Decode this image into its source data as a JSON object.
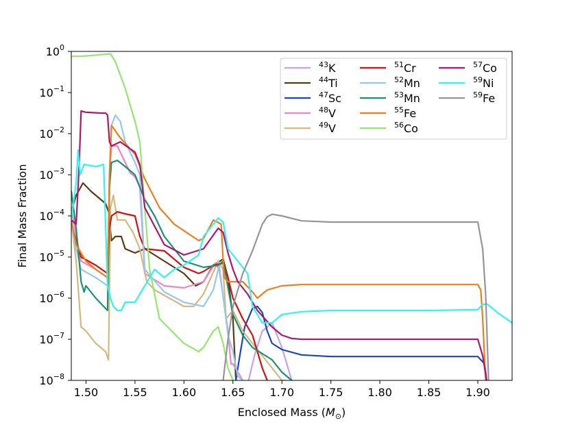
{
  "chart_data": {
    "type": "line",
    "title": "",
    "xlabel": "Enclosed Mass (",
    "xlabel_math": "M",
    "xlabel_sub": "⊙",
    "xlabel_end": ")",
    "ylabel": "Final Mass Fraction",
    "xlim": [
      1.485,
      1.935
    ],
    "ylim_log10": [
      -8,
      0
    ],
    "yscale": "log",
    "xticks": [
      1.5,
      1.55,
      1.6,
      1.65,
      1.7,
      1.75,
      1.8,
      1.85,
      1.9
    ],
    "xtick_labels": [
      "1.50",
      "1.55",
      "1.60",
      "1.65",
      "1.70",
      "1.75",
      "1.80",
      "1.85",
      "1.90"
    ],
    "ytick_exponents": [
      0,
      -1,
      -2,
      -3,
      -4,
      -5,
      -6,
      -7,
      -8
    ],
    "ytick_base": "10",
    "ytick_exp_labels": [
      "0",
      "−1",
      "−2",
      "−3",
      "−4",
      "−5",
      "−6",
      "−7",
      "−8"
    ],
    "legend_location": "top-right",
    "series": [
      {
        "name": "43K",
        "mass": "43",
        "element": "K",
        "color": "#c8a2e8",
        "x": [
          1.666,
          1.672,
          1.68,
          1.69,
          1.7,
          1.705,
          1.71
        ],
        "log10y": [
          -8,
          -7.4,
          -6.8,
          -6.6,
          -7.2,
          -7.6,
          -8
        ]
      },
      {
        "name": "44Ti",
        "mass": "44",
        "element": "Ti",
        "color": "#5a3a10",
        "x": [
          1.485,
          1.49,
          1.497,
          1.505,
          1.52,
          1.523,
          1.526,
          1.53,
          1.536,
          1.54,
          1.55,
          1.56,
          1.58,
          1.6,
          1.612,
          1.62,
          1.63,
          1.64,
          1.645,
          1.65,
          1.653
        ],
        "log10y": [
          -3.9,
          -3.5,
          -3.2,
          -3.4,
          -3.7,
          -3.9,
          -4.6,
          -4.5,
          -4.5,
          -4.8,
          -4.9,
          -4.8,
          -5.1,
          -5.4,
          -5.7,
          -5.6,
          -5.2,
          -5.05,
          -5.5,
          -6.5,
          -8
        ]
      },
      {
        "name": "47Sc",
        "mass": "47",
        "element": "Sc",
        "color": "#1544c8",
        "x": [
          1.653,
          1.657,
          1.662,
          1.67,
          1.675,
          1.68,
          1.685,
          1.69,
          1.7,
          1.72,
          1.75,
          1.8,
          1.85,
          1.9,
          1.907,
          1.909
        ],
        "log10y": [
          -8,
          -7.4,
          -6.7,
          -6.25,
          -6.2,
          -6.35,
          -6.8,
          -7.1,
          -7.25,
          -7.38,
          -7.42,
          -7.42,
          -7.42,
          -7.42,
          -7.6,
          -8
        ]
      },
      {
        "name": "48V",
        "mass": "48",
        "element": "V",
        "color": "#f285c0",
        "x": [
          1.485,
          1.49,
          1.495,
          1.51,
          1.522,
          1.524,
          1.526,
          1.532,
          1.54,
          1.545,
          1.55,
          1.555,
          1.56,
          1.58,
          1.6,
          1.62,
          1.632,
          1.636,
          1.645,
          1.648,
          1.65,
          1.66
        ],
        "log10y": [
          -3.8,
          -4.5,
          -5.1,
          -5.3,
          -5.5,
          -3.0,
          -2.3,
          -2.3,
          -2.7,
          -2.95,
          -3.05,
          -3.3,
          -5.4,
          -5.7,
          -5.75,
          -5.6,
          -5.15,
          -5.3,
          -6.8,
          -7.6,
          -7.6,
          -8
        ]
      },
      {
        "name": "49V",
        "mass": "49",
        "element": "V",
        "color": "#d6b77a",
        "x": [
          1.485,
          1.49,
          1.495,
          1.5,
          1.51,
          1.52,
          1.523,
          1.525,
          1.528,
          1.532,
          1.54,
          1.548,
          1.555,
          1.562,
          1.57,
          1.6,
          1.61,
          1.62,
          1.635,
          1.64,
          1.643,
          1.65,
          1.66,
          1.67,
          1.68,
          1.69,
          1.7,
          1.703
        ],
        "log10y": [
          -4.1,
          -5.1,
          -6.7,
          -6.8,
          -7.1,
          -7.3,
          -7.5,
          -3.8,
          -3.5,
          -4.1,
          -4.1,
          -4.4,
          -4.8,
          -5.6,
          -5.8,
          -6.2,
          -6.2,
          -5.9,
          -5.1,
          -5.3,
          -6.5,
          -6.3,
          -6.8,
          -7.1,
          -7.4,
          -7.7,
          -8,
          -8
        ]
      },
      {
        "name": "51Cr",
        "mass": "51",
        "element": "Cr",
        "color": "#d60e0e",
        "x": [
          1.485,
          1.49,
          1.495,
          1.51,
          1.522,
          1.524,
          1.526,
          1.532,
          1.54,
          1.55,
          1.555,
          1.56,
          1.58,
          1.6,
          1.615,
          1.62,
          1.63,
          1.64,
          1.645,
          1.65,
          1.66,
          1.67,
          1.675,
          1.68,
          1.685
        ],
        "log10y": [
          -4.2,
          -4.6,
          -5.0,
          -5.2,
          -5.4,
          -4.3,
          -4.0,
          -3.9,
          -3.95,
          -4.0,
          -4.5,
          -4.8,
          -4.85,
          -5.25,
          -5.4,
          -5.35,
          -5.2,
          -5.15,
          -5.5,
          -6.0,
          -6.5,
          -6.9,
          -7.3,
          -7.7,
          -8
        ]
      },
      {
        "name": "52Mn",
        "mass": "52",
        "element": "Mn",
        "color": "#92c8f2",
        "x": [
          1.485,
          1.49,
          1.495,
          1.51,
          1.522,
          1.524,
          1.526,
          1.53,
          1.535,
          1.54,
          1.55,
          1.555,
          1.56,
          1.58,
          1.6,
          1.62,
          1.63,
          1.636,
          1.645,
          1.65,
          1.655,
          1.66
        ],
        "log10y": [
          -4.2,
          -4.8,
          -5.3,
          -5.5,
          -5.7,
          -3.0,
          -1.8,
          -1.55,
          -1.7,
          -2.2,
          -2.7,
          -3.0,
          -5.3,
          -5.85,
          -6.1,
          -6.2,
          -5.8,
          -5.2,
          -6.9,
          -7.3,
          -7.9,
          -8
        ]
      },
      {
        "name": "53Mn",
        "mass": "53",
        "element": "Mn",
        "color": "#189078",
        "x": [
          1.485,
          1.49,
          1.495,
          1.498,
          1.5,
          1.51,
          1.522,
          1.524,
          1.526,
          1.532,
          1.54,
          1.55,
          1.555,
          1.56,
          1.57,
          1.58,
          1.6,
          1.62,
          1.635,
          1.64,
          1.65,
          1.66,
          1.67,
          1.68,
          1.69,
          1.7,
          1.71
        ],
        "log10y": [
          -3.4,
          -4.3,
          -5.6,
          -5.85,
          -5.7,
          -6.0,
          -6.3,
          -3.3,
          -2.7,
          -2.65,
          -2.8,
          -3.0,
          -3.3,
          -3.6,
          -4.0,
          -4.5,
          -5.1,
          -5.25,
          -5.2,
          -5.1,
          -6.4,
          -6.9,
          -7.2,
          -7.35,
          -7.5,
          -7.8,
          -8
        ]
      },
      {
        "name": "55Fe",
        "mass": "55",
        "element": "Fe",
        "color": "#f07c1a",
        "x": [
          1.485,
          1.49,
          1.5,
          1.51,
          1.522,
          1.524,
          1.526,
          1.535,
          1.55,
          1.56,
          1.575,
          1.59,
          1.615,
          1.62,
          1.63,
          1.638,
          1.641,
          1.645,
          1.66,
          1.67,
          1.675,
          1.68,
          1.685,
          1.7,
          1.72,
          1.75,
          1.8,
          1.85,
          1.9,
          1.903,
          1.905,
          1.908
        ],
        "log10y": [
          -4.1,
          -4.7,
          -5.1,
          -5.3,
          -5.5,
          -3.0,
          -1.8,
          -2.1,
          -2.5,
          -3.1,
          -3.8,
          -4.2,
          -4.6,
          -4.55,
          -4.1,
          -4.2,
          -5.5,
          -5.6,
          -5.6,
          -5.85,
          -6.0,
          -5.9,
          -5.8,
          -5.7,
          -5.67,
          -5.67,
          -5.67,
          -5.67,
          -5.67,
          -5.8,
          -6.5,
          -8
        ]
      },
      {
        "name": "56Co",
        "mass": "56",
        "element": "Co",
        "color": "#92e86c",
        "x": [
          1.485,
          1.495,
          1.505,
          1.52,
          1.525,
          1.53,
          1.54,
          1.55,
          1.555,
          1.56,
          1.565,
          1.575,
          1.6,
          1.615,
          1.62,
          1.63,
          1.635,
          1.64,
          1.645,
          1.65
        ],
        "log10y": [
          -0.12,
          -0.12,
          -0.1,
          -0.07,
          -0.06,
          -0.25,
          -0.9,
          -1.7,
          -2.2,
          -3.8,
          -5.3,
          -6.5,
          -7.1,
          -7.3,
          -7.2,
          -6.8,
          -6.7,
          -7.1,
          -7.7,
          -8
        ]
      },
      {
        "name": "57Co",
        "mass": "57",
        "element": "Co",
        "color": "#b0146e",
        "x": [
          1.485,
          1.49,
          1.493,
          1.495,
          1.5,
          1.515,
          1.52,
          1.522,
          1.524,
          1.526,
          1.535,
          1.55,
          1.555,
          1.56,
          1.58,
          1.6,
          1.62,
          1.635,
          1.64,
          1.645,
          1.65,
          1.655,
          1.665,
          1.675,
          1.69,
          1.7,
          1.71,
          1.72,
          1.75,
          1.8,
          1.85,
          1.9,
          1.905,
          1.909
        ],
        "log10y": [
          -4.1,
          -4.2,
          -2.8,
          -1.45,
          -1.48,
          -1.5,
          -1.5,
          -1.55,
          -2.2,
          -2.3,
          -2.2,
          -2.45,
          -2.75,
          -3.8,
          -4.7,
          -4.95,
          -4.8,
          -4.3,
          -4.4,
          -4.9,
          -5.3,
          -5.6,
          -5.9,
          -6.3,
          -6.7,
          -6.9,
          -6.98,
          -7.0,
          -7.0,
          -7.0,
          -7.0,
          -7.0,
          -7.4,
          -8
        ]
      },
      {
        "name": "59Ni",
        "mass": "59",
        "element": "Ni",
        "color": "#2ef4f4",
        "x": [
          1.485,
          1.49,
          1.492,
          1.494,
          1.498,
          1.51,
          1.518,
          1.522,
          1.525,
          1.528,
          1.532,
          1.536,
          1.54,
          1.55,
          1.56,
          1.57,
          1.58,
          1.59,
          1.6,
          1.615,
          1.62,
          1.635,
          1.64,
          1.645,
          1.65,
          1.665,
          1.67,
          1.68,
          1.69,
          1.7,
          1.72,
          1.75,
          1.8,
          1.85,
          1.9,
          1.905,
          1.91,
          1.92,
          1.935
        ],
        "log10y": [
          -4.1,
          -3.2,
          -2.4,
          -3.0,
          -2.75,
          -2.8,
          -2.75,
          -5.7,
          -6.0,
          -6.2,
          -6.3,
          -6.3,
          -6.1,
          -6.1,
          -5.7,
          -5.3,
          -5.5,
          -5.3,
          -5.2,
          -4.95,
          -4.5,
          -4.05,
          -4.15,
          -4.8,
          -4.95,
          -5.4,
          -6.2,
          -6.6,
          -6.6,
          -6.4,
          -6.33,
          -6.3,
          -6.3,
          -6.3,
          -6.28,
          -6.15,
          -6.15,
          -6.35,
          -6.6
        ]
      },
      {
        "name": "59Fe",
        "mass": "59",
        "element": "Fe",
        "color": "#959595",
        "x": [
          1.64,
          1.645,
          1.65,
          1.66,
          1.67,
          1.68,
          1.685,
          1.69,
          1.7,
          1.72,
          1.75,
          1.8,
          1.85,
          1.9,
          1.905,
          1.908,
          1.911
        ],
        "log10y": [
          -8,
          -7.0,
          -6.2,
          -5.4,
          -4.85,
          -4.2,
          -4.02,
          -3.96,
          -4.0,
          -4.12,
          -4.15,
          -4.15,
          -4.15,
          -4.15,
          -4.8,
          -5.9,
          -8
        ]
      }
    ]
  }
}
